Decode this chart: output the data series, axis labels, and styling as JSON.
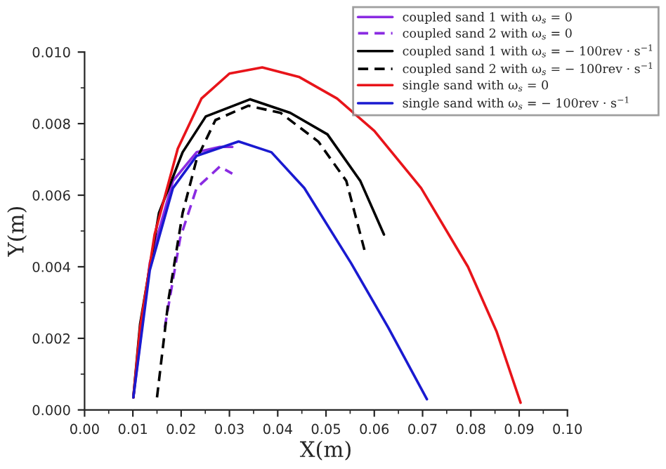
{
  "chart_data": {
    "type": "line",
    "xlabel": "X(m)",
    "ylabel": "Y(m)",
    "xlim": [
      0,
      0.1
    ],
    "ylim": [
      0,
      0.01
    ],
    "xticks": [
      {
        "value": 0,
        "label": "0.00"
      },
      {
        "value": 0.01,
        "label": "0.01"
      },
      {
        "value": 0.02,
        "label": "0.02"
      },
      {
        "value": 0.03,
        "label": "0.03"
      },
      {
        "value": 0.04,
        "label": "0.04"
      },
      {
        "value": 0.05,
        "label": "0.05"
      },
      {
        "value": 0.06,
        "label": "0.06"
      },
      {
        "value": 0.07,
        "label": "0.07"
      },
      {
        "value": 0.08,
        "label": "0.08"
      },
      {
        "value": 0.09,
        "label": "0.09"
      },
      {
        "value": 0.1,
        "label": "0.10"
      }
    ],
    "yticks": [
      {
        "value": 0,
        "label": "0.000"
      },
      {
        "value": 0.002,
        "label": "0.002"
      },
      {
        "value": 0.004,
        "label": "0.004"
      },
      {
        "value": 0.006,
        "label": "0.006"
      },
      {
        "value": 0.008,
        "label": "0.008"
      },
      {
        "value": 0.01,
        "label": "0.010"
      }
    ],
    "grid": false,
    "legend": "top right",
    "marker": "none",
    "series": [
      {
        "name": "coupled sand 1 with ω$_{s}$ = 0",
        "color": "#8a2be2",
        "line_style": "solid",
        "x": [
          0.0101,
          0.0135,
          0.0183,
          0.0232,
          0.028,
          0.0306
        ],
        "values": [
          0.00035,
          0.0041,
          0.0064,
          0.0072,
          0.00735,
          0.00735
        ]
      },
      {
        "name": "coupled sand 2 with ω$_{s}$ = 0",
        "color": "#8a2be2",
        "line_style": "dashed",
        "x": [
          0.0166,
          0.0198,
          0.0232,
          0.028,
          0.0306
        ],
        "values": [
          0.0023,
          0.0048,
          0.0062,
          0.0068,
          0.0066
        ]
      },
      {
        "name": "coupled sand 1 with ω$_{s}$ = − 100rev · s$^{−1}$",
        "color": "#000000",
        "line_style": "solid",
        "x": [
          0.0101,
          0.0115,
          0.0154,
          0.0203,
          0.0251,
          0.0343,
          0.0426,
          0.0503,
          0.0571,
          0.062
        ],
        "values": [
          0.00035,
          0.0024,
          0.0055,
          0.0072,
          0.0082,
          0.00868,
          0.0083,
          0.0077,
          0.0064,
          0.0049
        ]
      },
      {
        "name": "coupled sand 2 with ω$_{s}$ = − 100rev · s$^{−1}$",
        "color": "#000000",
        "line_style": "dashed",
        "x": [
          0.015,
          0.0174,
          0.0203,
          0.0232,
          0.0271,
          0.0339,
          0.0406,
          0.0484,
          0.0542,
          0.0581
        ],
        "values": [
          0.00035,
          0.0031,
          0.0055,
          0.007,
          0.0081,
          0.0085,
          0.0083,
          0.0075,
          0.0064,
          0.0044
        ]
      },
      {
        "name": "single sand with ω$_{s}$ = 0",
        "color": "#e8141a",
        "line_style": "solid",
        "x": [
          0.0101,
          0.0115,
          0.0145,
          0.0193,
          0.0242,
          0.03,
          0.0368,
          0.0445,
          0.0523,
          0.06,
          0.0697,
          0.0794,
          0.0853,
          0.0903
        ],
        "values": [
          0.00035,
          0.0023,
          0.0049,
          0.0073,
          0.0087,
          0.0094,
          0.00957,
          0.0093,
          0.0087,
          0.0078,
          0.0062,
          0.004,
          0.0022,
          0.0002
        ]
      },
      {
        "name": "single sand with ω$_{s}$ = − 100rev · s$^{−1}$",
        "color": "#1a1ad0",
        "line_style": "solid",
        "x": [
          0.0101,
          0.0135,
          0.0183,
          0.0232,
          0.0319,
          0.0387,
          0.0455,
          0.0552,
          0.0629,
          0.0709
        ],
        "values": [
          0.00035,
          0.0039,
          0.0062,
          0.0071,
          0.0075,
          0.0072,
          0.0062,
          0.0041,
          0.0023,
          0.0003
        ]
      }
    ]
  }
}
